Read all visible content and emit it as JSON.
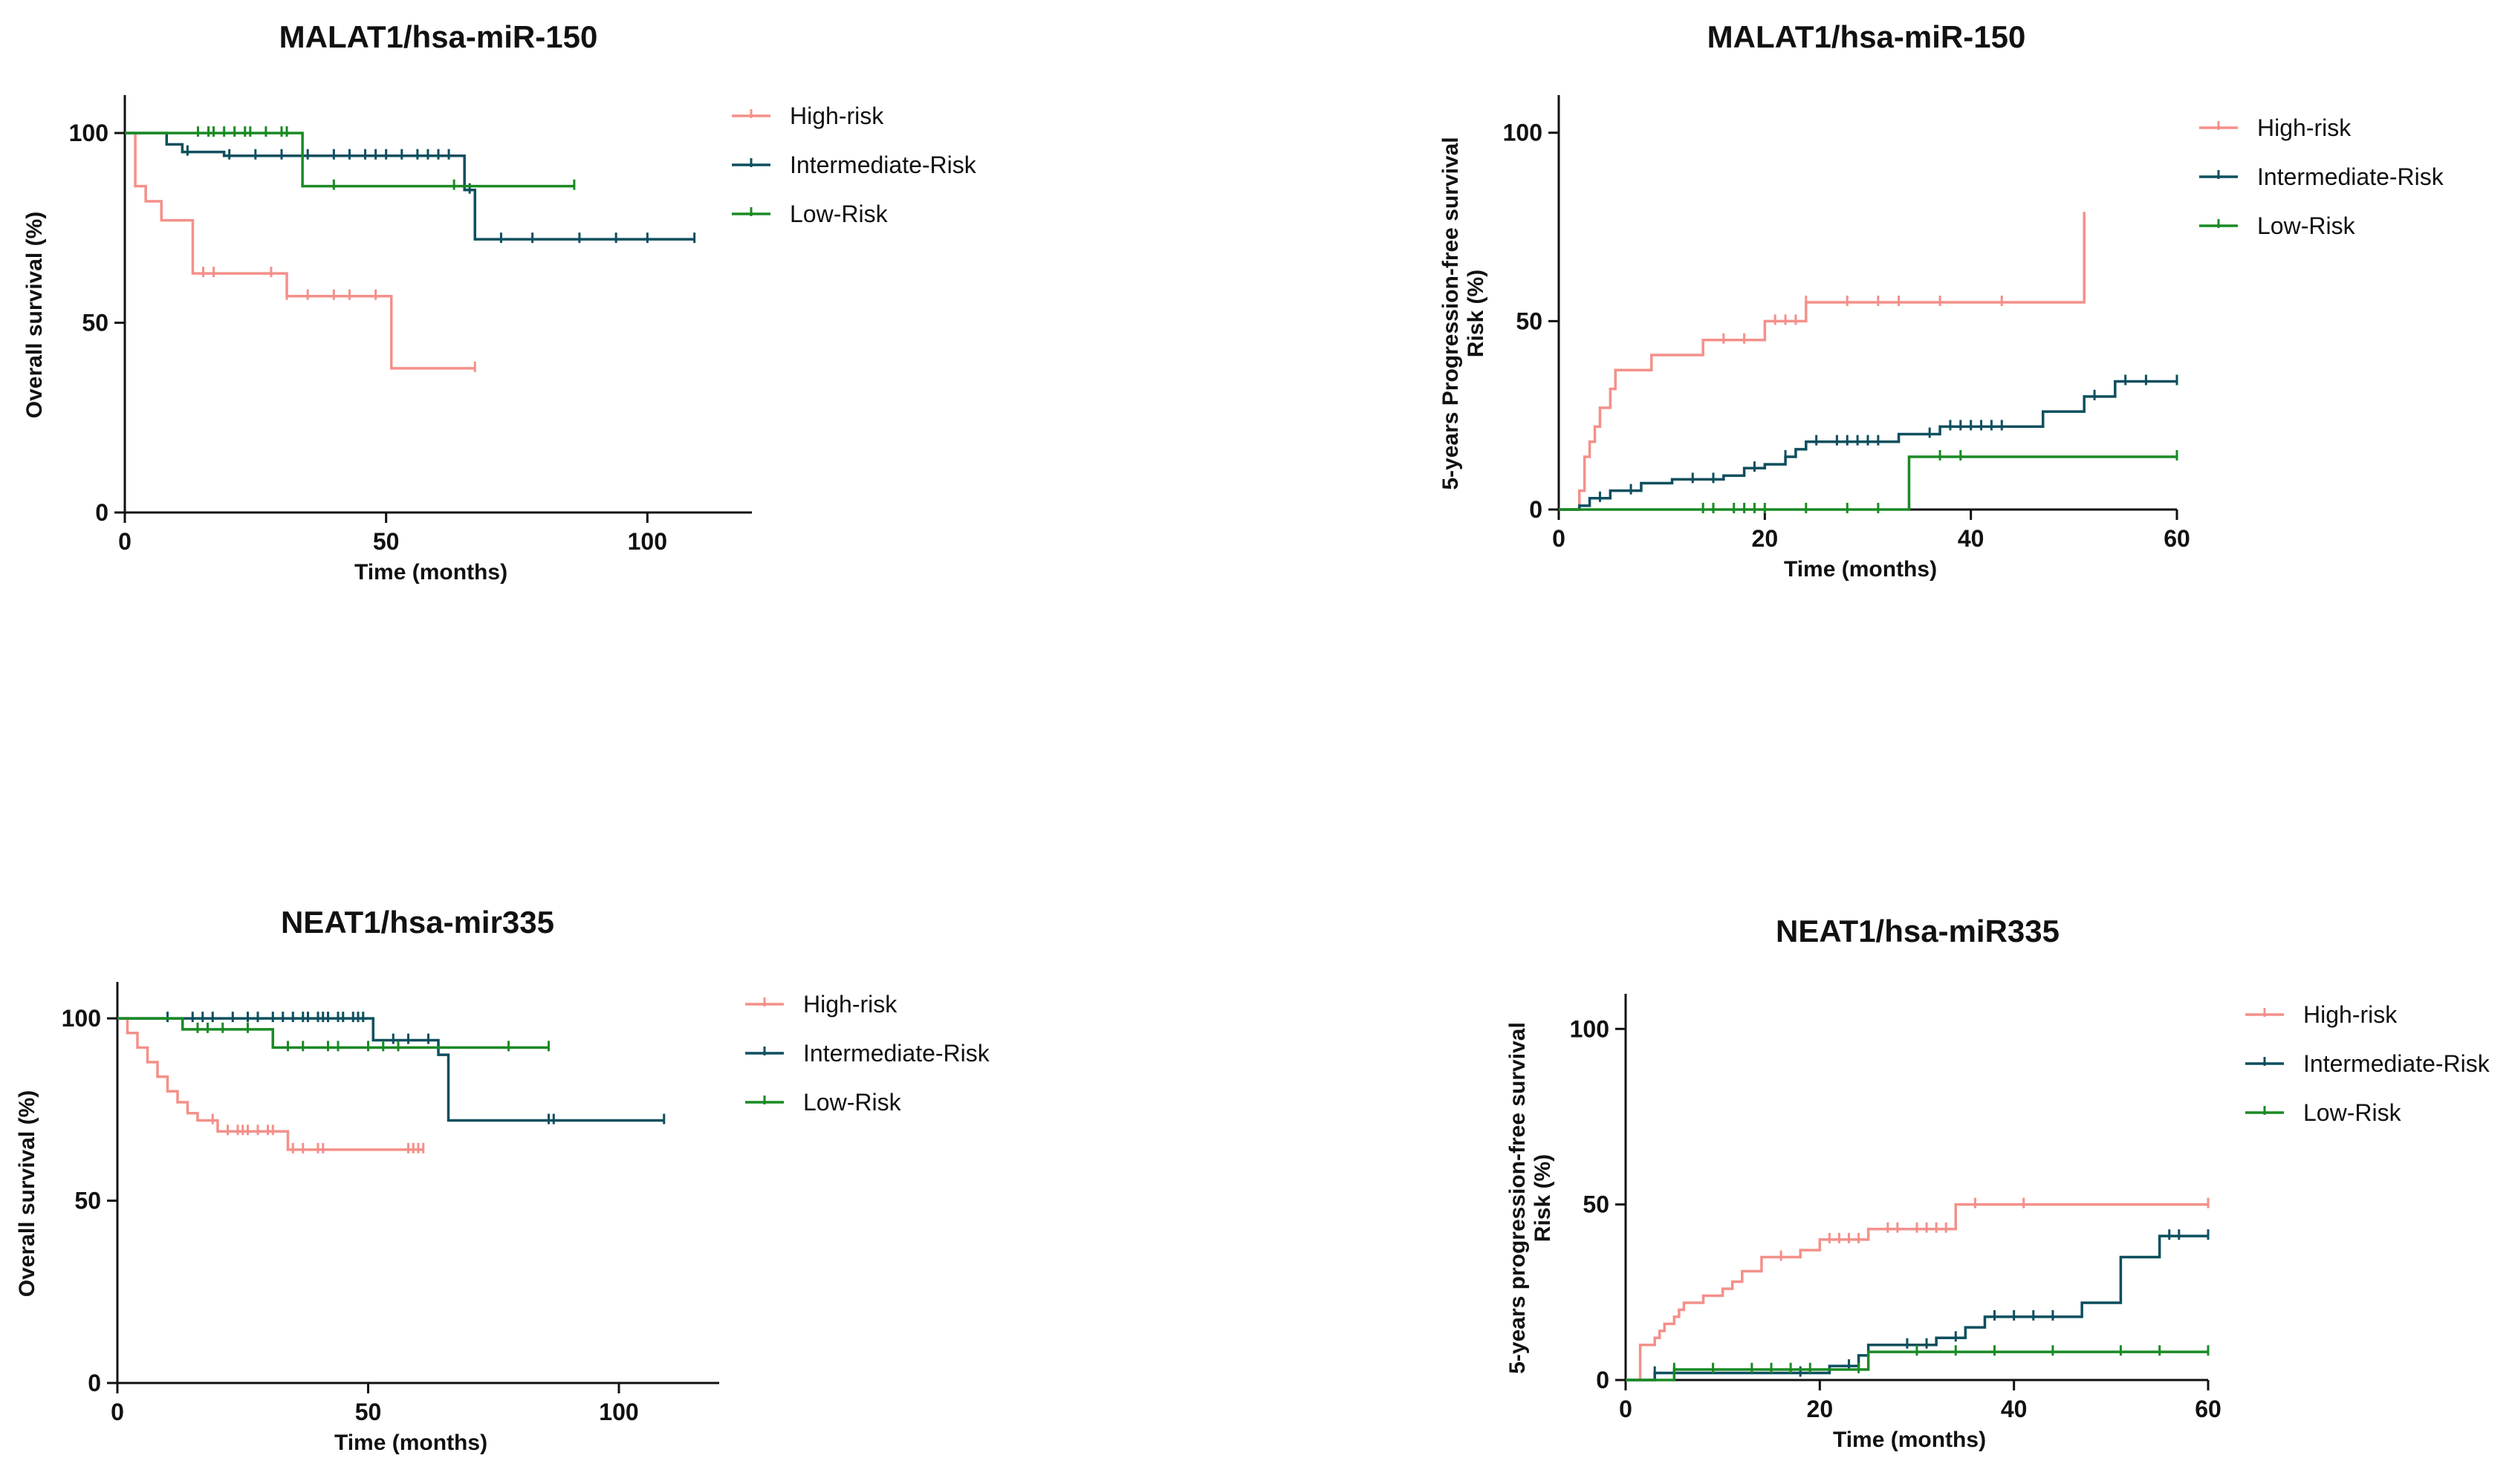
{
  "colors": {
    "high": "#f4908a",
    "intermediate": "#0d4f5e",
    "low": "#1a8a24"
  },
  "chart_data": [
    {
      "type": "line",
      "step": true,
      "title": "MALAT1/hsa-miR-150",
      "xlabel": "Time (months)",
      "ylabel": [
        "Overall survival (%)"
      ],
      "xlim": [
        0,
        120
      ],
      "ylim": [
        0,
        110
      ],
      "xticks": [
        0,
        50,
        100
      ],
      "yticks": [
        0,
        50,
        100
      ],
      "legend": "right",
      "series": [
        {
          "name": "High-risk",
          "color_key": "high",
          "x": [
            0,
            2,
            4,
            7,
            13,
            31,
            51,
            67
          ],
          "y": [
            100,
            86,
            82,
            77,
            63,
            57,
            38,
            38
          ],
          "censor_x": [
            15,
            17,
            28,
            31,
            35,
            40,
            43,
            48,
            67
          ]
        },
        {
          "name": "Intermediate-Risk",
          "color_key": "intermediate",
          "x": [
            0,
            8,
            11,
            19,
            65,
            67,
            109
          ],
          "y": [
            100,
            97,
            95,
            94,
            85,
            72,
            72
          ],
          "censor_x": [
            12,
            20,
            25,
            30,
            35,
            40,
            43,
            46,
            48,
            50,
            53,
            56,
            58,
            60,
            62,
            66,
            72,
            78,
            87,
            94,
            100,
            109
          ]
        },
        {
          "name": "Low-Risk",
          "color_key": "low",
          "x": [
            0,
            34,
            86
          ],
          "y": [
            100,
            86,
            86
          ],
          "censor_x": [
            14,
            16,
            17,
            19,
            21,
            23,
            24,
            27,
            30,
            31,
            40,
            63,
            86
          ]
        }
      ]
    },
    {
      "type": "line",
      "step": true,
      "title": "MALAT1/hsa-miR-150",
      "xlabel": "Time (months)",
      "ylabel": [
        "5-years Progression-free survival",
        "Risk (%)"
      ],
      "xlim": [
        0,
        60
      ],
      "ylim": [
        0,
        110
      ],
      "xticks": [
        0,
        20,
        40,
        60
      ],
      "yticks": [
        0,
        50,
        100
      ],
      "legend": "right",
      "series": [
        {
          "name": "High-risk",
          "color_key": "high",
          "x": [
            0,
            2,
            2.5,
            3,
            3.5,
            4,
            5,
            5.5,
            6,
            9,
            14,
            20,
            24,
            51,
            51
          ],
          "y": [
            0,
            5,
            14,
            18,
            22,
            27,
            32,
            37,
            37,
            41,
            45,
            50,
            55,
            55,
            79
          ],
          "censor_x": [
            16,
            18,
            21,
            22,
            23,
            24,
            28,
            31,
            33,
            37,
            43
          ]
        },
        {
          "name": "Intermediate-Risk",
          "color_key": "intermediate",
          "x": [
            0,
            2,
            3,
            5,
            8,
            11,
            16,
            18,
            20,
            22,
            23,
            24,
            33,
            37,
            47,
            51,
            54,
            60
          ],
          "y": [
            0,
            1,
            3,
            5,
            7,
            8,
            9,
            11,
            12,
            14,
            16,
            18,
            20,
            22,
            26,
            30,
            34,
            34
          ],
          "censor_x": [
            4,
            7,
            13,
            15,
            19,
            22,
            25,
            27,
            28,
            29,
            30,
            31,
            36,
            38,
            39,
            40,
            41,
            42,
            43,
            52,
            55,
            57,
            60
          ]
        },
        {
          "name": "Low-Risk",
          "color_key": "low",
          "x": [
            0,
            34,
            60
          ],
          "y": [
            0,
            14,
            14
          ],
          "censor_x": [
            14,
            15,
            17,
            18,
            19,
            20,
            24,
            28,
            31,
            37,
            39,
            60
          ]
        }
      ]
    },
    {
      "type": "line",
      "step": true,
      "title": "NEAT1/hsa-mir335",
      "xlabel": "Time (months)",
      "ylabel": [
        "Overall survival (%)"
      ],
      "xlim": [
        0,
        120
      ],
      "ylim": [
        0,
        110
      ],
      "xticks": [
        0,
        50,
        100
      ],
      "yticks": [
        0,
        50,
        100
      ],
      "legend": "right",
      "series": [
        {
          "name": "High-risk",
          "color_key": "high",
          "x": [
            0,
            2,
            4,
            6,
            8,
            10,
            12,
            14,
            16,
            20,
            34,
            61
          ],
          "y": [
            100,
            96,
            92,
            88,
            84,
            80,
            77,
            74,
            72,
            69,
            64,
            64
          ],
          "censor_x": [
            19,
            22,
            24,
            25,
            26,
            28,
            30,
            31,
            35,
            37,
            40,
            41,
            58,
            59,
            60,
            61
          ]
        },
        {
          "name": "Intermediate-Risk",
          "color_key": "intermediate",
          "x": [
            0,
            51,
            64,
            66,
            109
          ],
          "y": [
            100,
            94,
            90,
            72,
            72
          ],
          "censor_x": [
            10,
            15,
            17,
            19,
            23,
            26,
            28,
            31,
            33,
            35,
            37,
            38,
            40,
            41,
            42,
            44,
            45,
            47,
            48,
            49,
            55,
            58,
            62,
            86,
            87,
            109
          ]
        },
        {
          "name": "Low-Risk",
          "color_key": "low",
          "x": [
            0,
            13,
            31,
            86
          ],
          "y": [
            100,
            97,
            92,
            92
          ],
          "censor_x": [
            16,
            18,
            21,
            26,
            34,
            37,
            42,
            44,
            50,
            53,
            56,
            78,
            86
          ]
        }
      ]
    },
    {
      "type": "line",
      "step": true,
      "title": "NEAT1/hsa-miR335",
      "xlabel": "Time (months)",
      "ylabel": [
        "5-years progression-free survival",
        "Risk (%)"
      ],
      "xlim": [
        0,
        60
      ],
      "ylim": [
        0,
        110
      ],
      "xticks": [
        0,
        20,
        40,
        60
      ],
      "yticks": [
        0,
        50,
        100
      ],
      "legend": "right",
      "series": [
        {
          "name": "High-risk",
          "color_key": "high",
          "x": [
            0,
            1.5,
            3,
            3.5,
            4,
            5,
            5.5,
            6,
            8,
            10,
            11,
            12,
            14,
            18,
            20,
            25,
            34,
            60
          ],
          "y": [
            0,
            10,
            12,
            14,
            16,
            18,
            20,
            22,
            24,
            26,
            28,
            31,
            35,
            37,
            40,
            43,
            50,
            50
          ],
          "censor_x": [
            16,
            21,
            22,
            23,
            24,
            27,
            28,
            30,
            31,
            32,
            33,
            36,
            41,
            60
          ]
        },
        {
          "name": "Intermediate-Risk",
          "color_key": "intermediate",
          "x": [
            0,
            3,
            21,
            24,
            25,
            32,
            35,
            37,
            47,
            51,
            55,
            60
          ],
          "y": [
            0,
            2,
            4,
            7,
            10,
            12,
            15,
            18,
            22,
            35,
            41,
            41
          ],
          "censor_x": [
            3,
            5,
            18,
            23,
            29,
            31,
            34,
            38,
            40,
            42,
            44,
            56,
            57,
            60
          ]
        },
        {
          "name": "Low-Risk",
          "color_key": "low",
          "x": [
            0,
            5,
            25,
            60
          ],
          "y": [
            0,
            3,
            8,
            8
          ],
          "censor_x": [
            5,
            9,
            13,
            15,
            17,
            19,
            24,
            30,
            34,
            38,
            44,
            51,
            55,
            60
          ]
        }
      ]
    }
  ]
}
